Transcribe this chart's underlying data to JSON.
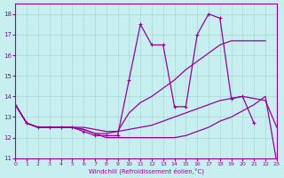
{
  "xlabel": "Windchill (Refroidissement éolien,°C)",
  "xlim": [
    0,
    23
  ],
  "ylim": [
    11,
    18.5
  ],
  "yticks": [
    11,
    12,
    13,
    14,
    15,
    16,
    17,
    18
  ],
  "xticks": [
    0,
    1,
    2,
    3,
    4,
    5,
    6,
    7,
    8,
    9,
    10,
    11,
    12,
    13,
    14,
    15,
    16,
    17,
    18,
    19,
    20,
    21,
    22,
    23
  ],
  "background_color": "#c8efef",
  "grid_color": "#a8d8d8",
  "line_color": "#990099",
  "line1": {
    "comment": "jagged line WITH markers - peaks at x=11(17.5), x=13(16.5), x=17(18.0), x=18(17.8), ends ~x=21",
    "x": [
      0,
      1,
      2,
      3,
      4,
      5,
      6,
      7,
      8,
      9,
      10,
      11,
      12,
      13,
      14,
      15,
      16,
      17,
      18,
      19,
      20,
      21
    ],
    "y": [
      13.6,
      12.7,
      12.5,
      12.5,
      12.5,
      12.5,
      12.3,
      12.1,
      12.1,
      12.1,
      14.8,
      17.5,
      16.5,
      16.5,
      13.5,
      13.5,
      17.0,
      18.0,
      17.8,
      13.9,
      14.0,
      12.7
    ]
  },
  "line2": {
    "x": [
      0,
      1,
      2,
      3,
      4,
      5,
      6,
      7,
      8,
      9,
      10,
      11,
      12,
      13,
      14,
      15,
      16,
      17,
      18,
      19,
      20,
      21,
      22
    ],
    "y": [
      13.6,
      12.7,
      12.5,
      12.5,
      12.5,
      12.5,
      12.4,
      12.2,
      12.2,
      12.3,
      13.2,
      13.7,
      14.0,
      14.4,
      14.8,
      15.3,
      15.7,
      16.1,
      16.5,
      16.7,
      16.7,
      16.7,
      16.7
    ]
  },
  "line3": {
    "x": [
      0,
      1,
      2,
      3,
      4,
      5,
      6,
      7,
      8,
      9,
      10,
      11,
      12,
      13,
      14,
      15,
      16,
      17,
      18,
      19,
      20,
      21,
      22,
      23
    ],
    "y": [
      13.6,
      12.7,
      12.5,
      12.5,
      12.5,
      12.5,
      12.4,
      12.2,
      12.0,
      12.0,
      12.0,
      12.0,
      12.0,
      12.0,
      12.0,
      12.1,
      12.3,
      12.5,
      12.8,
      13.0,
      13.3,
      13.6,
      14.0,
      10.8
    ]
  },
  "line4": {
    "x": [
      0,
      1,
      2,
      3,
      4,
      5,
      6,
      7,
      8,
      9,
      10,
      11,
      12,
      13,
      14,
      15,
      16,
      17,
      18,
      19,
      20,
      21,
      22,
      23
    ],
    "y": [
      13.6,
      12.7,
      12.5,
      12.5,
      12.5,
      12.5,
      12.5,
      12.4,
      12.3,
      12.3,
      12.4,
      12.5,
      12.6,
      12.8,
      13.0,
      13.2,
      13.4,
      13.6,
      13.8,
      13.9,
      14.0,
      13.9,
      13.8,
      12.5
    ]
  }
}
